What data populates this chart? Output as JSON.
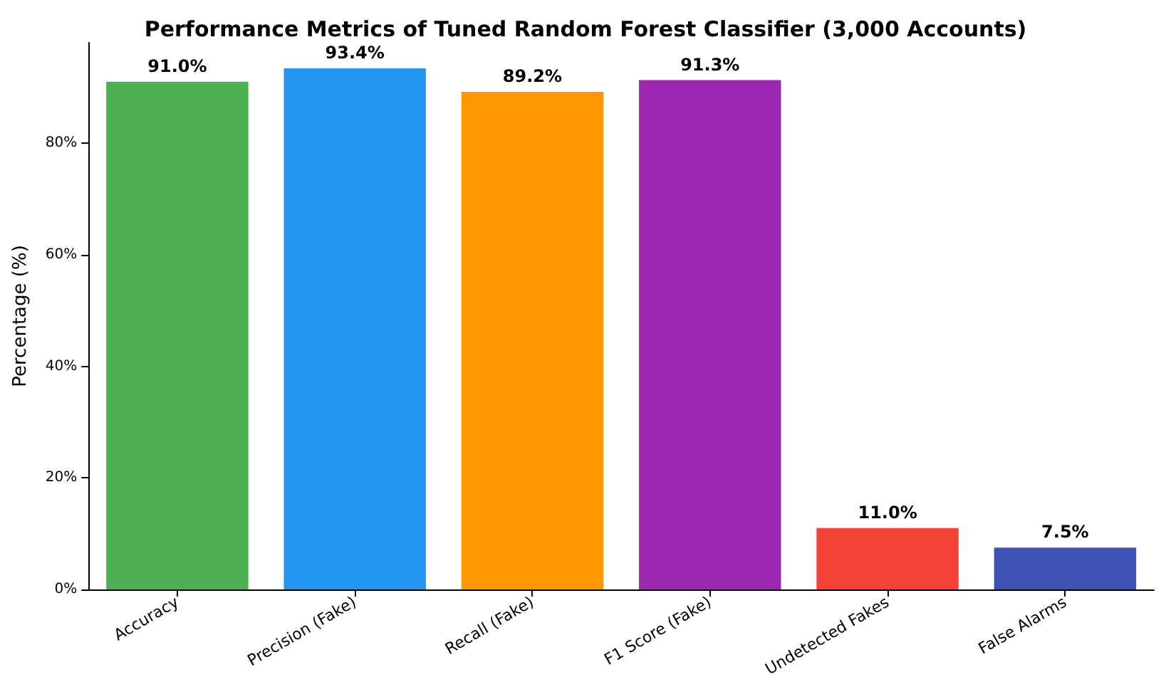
{
  "chart_data": {
    "type": "bar",
    "title": "Performance Metrics of Tuned Random Forest Classifier (3,000 Accounts)",
    "ylabel": "Percentage (%)",
    "categories": [
      "Accuracy",
      "Precision (Fake)",
      "Recall (Fake)",
      "F1 Score (Fake)",
      "Undetected Fakes",
      "False Alarms"
    ],
    "values": [
      91.0,
      93.4,
      89.2,
      91.3,
      11.0,
      7.5
    ],
    "colors": [
      "#4caf50",
      "#2196f3",
      "#ff9800",
      "#9c27b0",
      "#f44336",
      "#3f51b5"
    ],
    "value_labels": [
      "91.0%",
      "93.4%",
      "89.2%",
      "91.3%",
      "11.0%",
      "7.5%"
    ],
    "ylim": [
      0,
      98
    ],
    "yticks": [
      {
        "value": 0,
        "label": "0%"
      },
      {
        "value": 20,
        "label": "20%"
      },
      {
        "value": 40,
        "label": "40%"
      },
      {
        "value": 60,
        "label": "60%"
      },
      {
        "value": 80,
        "label": "80%"
      }
    ],
    "grid": false
  }
}
